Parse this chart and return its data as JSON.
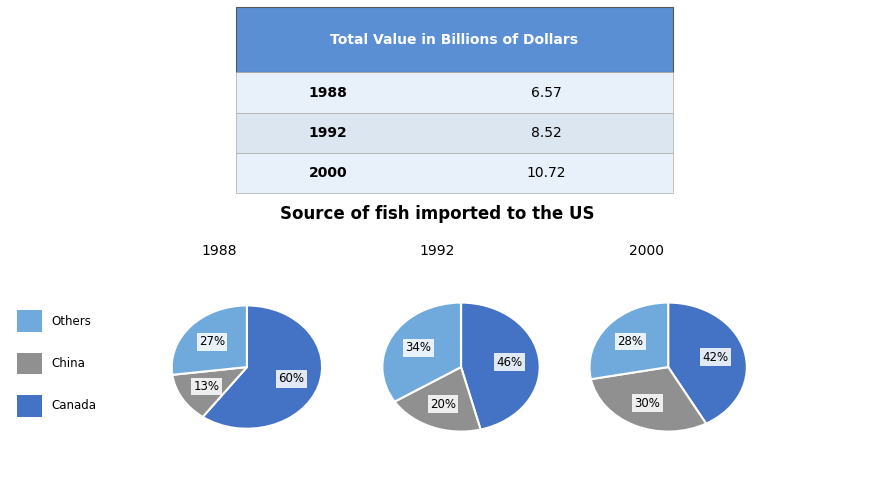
{
  "table_title": "Total Value in Billions of Dollars",
  "table_rows": [
    [
      "1988",
      "6.57"
    ],
    [
      "1992",
      "8.52"
    ],
    [
      "2000",
      "10.72"
    ]
  ],
  "table_header_bg": "#5b8fd4",
  "table_header_color": "#ffffff",
  "table_row_bg_alt": "#dce6f1",
  "table_row_bg_main": "#e8f0fa",
  "pie_title": "Source of fish imported to the US",
  "pie_years": [
    "1988",
    "1992",
    "2000"
  ],
  "pie_data": [
    [
      60,
      13,
      27
    ],
    [
      46,
      20,
      34
    ],
    [
      42,
      30,
      28
    ]
  ],
  "pie_colors_canada": "#4472C4",
  "pie_colors_china": "#909090",
  "pie_colors_others": "#70aadd",
  "legend_labels": [
    "Others",
    "China",
    "Canada"
  ],
  "legend_colors": [
    "#70aadd",
    "#909090",
    "#4472C4"
  ],
  "background_color": "#ffffff"
}
